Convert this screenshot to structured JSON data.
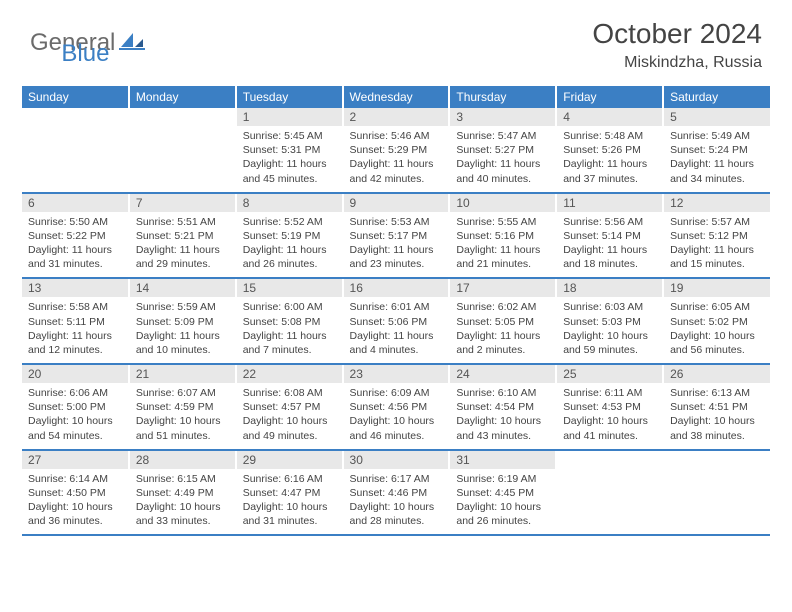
{
  "brand": {
    "general": "General",
    "blue": "Blue"
  },
  "title": "October 2024",
  "location": "Miskindzha, Russia",
  "colors": {
    "accent": "#3b7fc4",
    "daynum_bg": "#e8e8e8",
    "text": "#444444",
    "logo_gray": "#6b6b6b",
    "background": "#ffffff"
  },
  "typography": {
    "month_fontsize": 28,
    "location_fontsize": 16,
    "header_fontsize": 12,
    "body_fontsize": 10.5
  },
  "weekdays": [
    "Sunday",
    "Monday",
    "Tuesday",
    "Wednesday",
    "Thursday",
    "Friday",
    "Saturday"
  ],
  "weeks": [
    [
      null,
      null,
      {
        "n": "1",
        "sr": "5:45 AM",
        "ss": "5:31 PM",
        "dl": "11 hours and 45 minutes."
      },
      {
        "n": "2",
        "sr": "5:46 AM",
        "ss": "5:29 PM",
        "dl": "11 hours and 42 minutes."
      },
      {
        "n": "3",
        "sr": "5:47 AM",
        "ss": "5:27 PM",
        "dl": "11 hours and 40 minutes."
      },
      {
        "n": "4",
        "sr": "5:48 AM",
        "ss": "5:26 PM",
        "dl": "11 hours and 37 minutes."
      },
      {
        "n": "5",
        "sr": "5:49 AM",
        "ss": "5:24 PM",
        "dl": "11 hours and 34 minutes."
      }
    ],
    [
      {
        "n": "6",
        "sr": "5:50 AM",
        "ss": "5:22 PM",
        "dl": "11 hours and 31 minutes."
      },
      {
        "n": "7",
        "sr": "5:51 AM",
        "ss": "5:21 PM",
        "dl": "11 hours and 29 minutes."
      },
      {
        "n": "8",
        "sr": "5:52 AM",
        "ss": "5:19 PM",
        "dl": "11 hours and 26 minutes."
      },
      {
        "n": "9",
        "sr": "5:53 AM",
        "ss": "5:17 PM",
        "dl": "11 hours and 23 minutes."
      },
      {
        "n": "10",
        "sr": "5:55 AM",
        "ss": "5:16 PM",
        "dl": "11 hours and 21 minutes."
      },
      {
        "n": "11",
        "sr": "5:56 AM",
        "ss": "5:14 PM",
        "dl": "11 hours and 18 minutes."
      },
      {
        "n": "12",
        "sr": "5:57 AM",
        "ss": "5:12 PM",
        "dl": "11 hours and 15 minutes."
      }
    ],
    [
      {
        "n": "13",
        "sr": "5:58 AM",
        "ss": "5:11 PM",
        "dl": "11 hours and 12 minutes."
      },
      {
        "n": "14",
        "sr": "5:59 AM",
        "ss": "5:09 PM",
        "dl": "11 hours and 10 minutes."
      },
      {
        "n": "15",
        "sr": "6:00 AM",
        "ss": "5:08 PM",
        "dl": "11 hours and 7 minutes."
      },
      {
        "n": "16",
        "sr": "6:01 AM",
        "ss": "5:06 PM",
        "dl": "11 hours and 4 minutes."
      },
      {
        "n": "17",
        "sr": "6:02 AM",
        "ss": "5:05 PM",
        "dl": "11 hours and 2 minutes."
      },
      {
        "n": "18",
        "sr": "6:03 AM",
        "ss": "5:03 PM",
        "dl": "10 hours and 59 minutes."
      },
      {
        "n": "19",
        "sr": "6:05 AM",
        "ss": "5:02 PM",
        "dl": "10 hours and 56 minutes."
      }
    ],
    [
      {
        "n": "20",
        "sr": "6:06 AM",
        "ss": "5:00 PM",
        "dl": "10 hours and 54 minutes."
      },
      {
        "n": "21",
        "sr": "6:07 AM",
        "ss": "4:59 PM",
        "dl": "10 hours and 51 minutes."
      },
      {
        "n": "22",
        "sr": "6:08 AM",
        "ss": "4:57 PM",
        "dl": "10 hours and 49 minutes."
      },
      {
        "n": "23",
        "sr": "6:09 AM",
        "ss": "4:56 PM",
        "dl": "10 hours and 46 minutes."
      },
      {
        "n": "24",
        "sr": "6:10 AM",
        "ss": "4:54 PM",
        "dl": "10 hours and 43 minutes."
      },
      {
        "n": "25",
        "sr": "6:11 AM",
        "ss": "4:53 PM",
        "dl": "10 hours and 41 minutes."
      },
      {
        "n": "26",
        "sr": "6:13 AM",
        "ss": "4:51 PM",
        "dl": "10 hours and 38 minutes."
      }
    ],
    [
      {
        "n": "27",
        "sr": "6:14 AM",
        "ss": "4:50 PM",
        "dl": "10 hours and 36 minutes."
      },
      {
        "n": "28",
        "sr": "6:15 AM",
        "ss": "4:49 PM",
        "dl": "10 hours and 33 minutes."
      },
      {
        "n": "29",
        "sr": "6:16 AM",
        "ss": "4:47 PM",
        "dl": "10 hours and 31 minutes."
      },
      {
        "n": "30",
        "sr": "6:17 AM",
        "ss": "4:46 PM",
        "dl": "10 hours and 28 minutes."
      },
      {
        "n": "31",
        "sr": "6:19 AM",
        "ss": "4:45 PM",
        "dl": "10 hours and 26 minutes."
      },
      null,
      null
    ]
  ],
  "labels": {
    "sunrise": "Sunrise:",
    "sunset": "Sunset:",
    "daylight": "Daylight:"
  }
}
